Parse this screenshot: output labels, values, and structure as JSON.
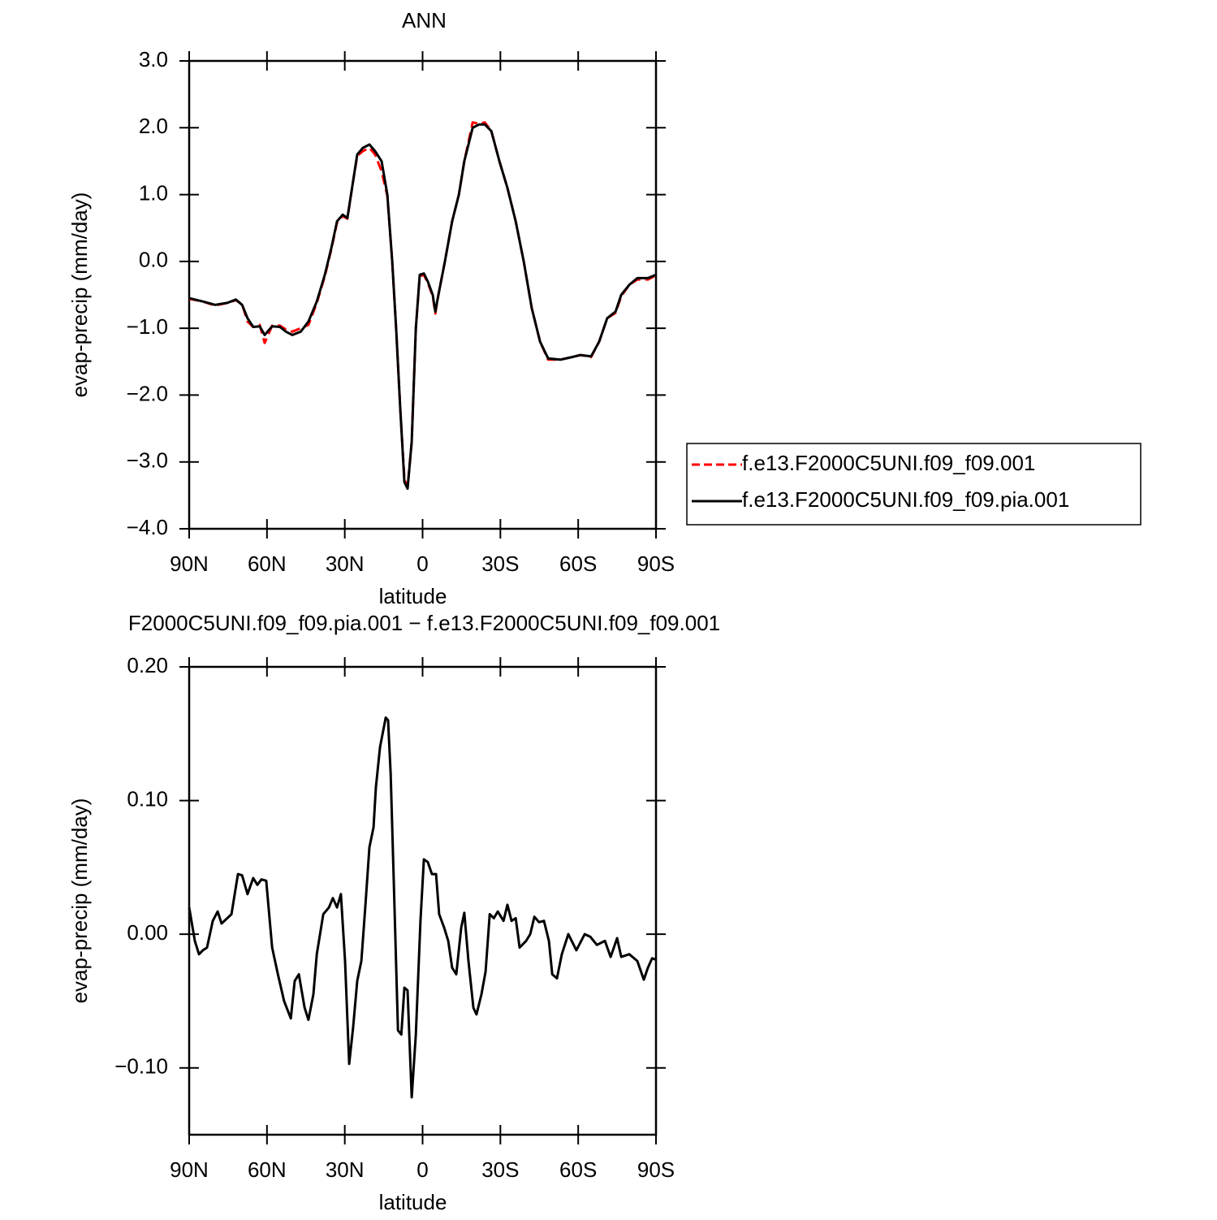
{
  "chart_data": [
    {
      "type": "line",
      "title": "ANN",
      "x_label": "latitude",
      "y_label": "evap-precip (mm/day)",
      "xlim": [
        90,
        -90
      ],
      "xticks": [
        {
          "value": 90,
          "label": "90N"
        },
        {
          "value": 60,
          "label": "60N"
        },
        {
          "value": 30,
          "label": "30N"
        },
        0,
        {
          "value": -30,
          "label": "30S"
        },
        {
          "value": -60,
          "label": "60S"
        },
        {
          "value": -90,
          "label": "90S"
        }
      ],
      "ylim": [
        -4.0,
        3.0
      ],
      "yticks": [
        {
          "value": 3.0,
          "label": "3.0"
        },
        {
          "value": 2.0,
          "label": "2.0"
        },
        {
          "value": 1.0,
          "label": "1.0"
        },
        {
          "value": 0.0,
          "label": "0.0"
        },
        {
          "value": -1.0,
          "label": "−1.0"
        },
        {
          "value": -2.0,
          "label": "−2.0"
        },
        {
          "value": -3.0,
          "label": "−3.0"
        },
        {
          "value": -4.0,
          "label": "−4.0"
        }
      ],
      "legend": "right",
      "x": [
        90,
        84.7,
        80,
        75.3,
        72,
        69.6,
        67.5,
        65.3,
        62.8,
        60.9,
        58,
        55,
        52.7,
        50.2,
        47,
        44,
        40.8,
        37.7,
        35.2,
        33,
        30.8,
        29,
        26.8,
        25.2,
        23,
        20.5,
        18.3,
        15.8,
        13.6,
        11.7,
        10.2,
        8.6,
        7,
        5.8,
        4.2,
        2.6,
        1.1,
        -0.5,
        -2,
        -3.9,
        -4.9,
        -6.1,
        -8.6,
        -11.4,
        -14,
        -16.1,
        -19.3,
        -21.8,
        -24,
        -26.5,
        -29.6,
        -32.7,
        -35.9,
        -39,
        -42.1,
        -45.3,
        -48.4,
        -53.1,
        -57.8,
        -60.9,
        -65,
        -68.1,
        -71.2,
        -74.4,
        -76.6,
        -79.7,
        -82.8,
        -86.9,
        -90
      ],
      "series": [
        {
          "name": "f.e13.F2000C5UNI.f09_f09.001",
          "color": "#ff0000",
          "linestyle": "dashed",
          "values": [
            -0.56,
            -0.6,
            -0.66,
            -0.62,
            -0.58,
            -0.64,
            -0.9,
            -0.98,
            -0.95,
            -1.22,
            -0.96,
            -0.96,
            -1.02,
            -1.05,
            -1.0,
            -0.95,
            -0.62,
            -0.22,
            0.18,
            0.58,
            0.68,
            0.64,
            1.2,
            1.58,
            1.65,
            1.7,
            1.6,
            1.35,
            0.98,
            0.0,
            -1.0,
            -2.2,
            -3.25,
            -3.38,
            -2.7,
            -1.0,
            -0.22,
            -0.2,
            -0.32,
            -0.52,
            -0.78,
            -0.5,
            0.0,
            0.6,
            1.0,
            1.5,
            2.08,
            2.06,
            2.08,
            1.95,
            1.5,
            1.1,
            0.6,
            0.0,
            -0.7,
            -1.2,
            -1.47,
            -1.47,
            -1.43,
            -1.4,
            -1.43,
            -1.2,
            -0.85,
            -0.77,
            -0.52,
            -0.35,
            -0.27,
            -0.27,
            -0.21
          ]
        },
        {
          "name": "f.e13.F2000C5UNI.f09_f09.pia.001",
          "color": "#000000",
          "linestyle": "solid",
          "values": [
            -0.55,
            -0.6,
            -0.65,
            -0.62,
            -0.57,
            -0.65,
            -0.85,
            -0.98,
            -0.97,
            -1.1,
            -0.97,
            -0.98,
            -1.05,
            -1.1,
            -1.05,
            -0.9,
            -0.6,
            -0.2,
            0.2,
            0.6,
            0.7,
            0.65,
            1.2,
            1.6,
            1.7,
            1.75,
            1.65,
            1.5,
            1.0,
            0.0,
            -1.0,
            -2.2,
            -3.3,
            -3.4,
            -2.7,
            -1.0,
            -0.2,
            -0.18,
            -0.3,
            -0.5,
            -0.75,
            -0.5,
            0.0,
            0.6,
            1.0,
            1.5,
            2.0,
            2.05,
            2.05,
            1.95,
            1.5,
            1.1,
            0.6,
            0.0,
            -0.7,
            -1.2,
            -1.45,
            -1.47,
            -1.43,
            -1.4,
            -1.42,
            -1.2,
            -0.85,
            -0.75,
            -0.5,
            -0.35,
            -0.25,
            -0.25,
            -0.2
          ]
        }
      ]
    },
    {
      "type": "line",
      "title": "F2000C5UNI.f09_f09.pia.001  −  f.e13.F2000C5UNI.f09_f09.001",
      "x_label": "latitude",
      "y_label": "evap-precip (mm/day)",
      "xlim": [
        90,
        -90
      ],
      "xticks": [
        {
          "value": 90,
          "label": "90N"
        },
        {
          "value": 60,
          "label": "60N"
        },
        {
          "value": 30,
          "label": "30N"
        },
        0,
        {
          "value": -30,
          "label": "30S"
        },
        {
          "value": -60,
          "label": "60S"
        },
        {
          "value": -90,
          "label": "90S"
        }
      ],
      "ylim": [
        -0.15,
        0.2
      ],
      "yticks": [
        {
          "value": 0.2,
          "label": "0.20"
        },
        {
          "value": 0.1,
          "label": "0.10"
        },
        {
          "value": 0.0,
          "label": "0.00"
        },
        {
          "value": -0.1,
          "label": "−0.10"
        }
      ],
      "color": "#000000",
      "x": [
        90,
        87.8,
        86.2,
        84.7,
        83.1,
        80.9,
        79,
        77.5,
        75.3,
        73.7,
        71.2,
        69.6,
        67.5,
        65.3,
        63.7,
        62.1,
        60.3,
        58,
        55.8,
        53.4,
        50.8,
        49.3,
        47.7,
        45.5,
        44,
        42.1,
        40.8,
        38.3,
        36.1,
        34.6,
        33,
        31.5,
        29.9,
        28.3,
        26.8,
        25.2,
        23.6,
        22.1,
        20.5,
        18.9,
        18,
        16.4,
        14.2,
        13.3,
        12.3,
        11.1,
        9.5,
        8.2,
        7,
        5.8,
        4.2,
        2.6,
        0.8,
        -0.5,
        -2,
        -3.6,
        -5.2,
        -6.4,
        -8.3,
        -9.9,
        -11.4,
        -13,
        -14.9,
        -16.1,
        -17.7,
        -19.6,
        -20.8,
        -22.7,
        -24.3,
        -25.9,
        -27.5,
        -29,
        -31.2,
        -32.7,
        -34.3,
        -35.9,
        -37.4,
        -39.9,
        -41.5,
        -43.1,
        -44.9,
        -46.8,
        -48.7,
        -50,
        -51.8,
        -53.7,
        -56.2,
        -59.3,
        -62.5,
        -64.7,
        -67.2,
        -70.3,
        -72.5,
        -75,
        -76.6,
        -79.7,
        -82.8,
        -85.3,
        -86.9,
        -88.5,
        -90
      ],
      "values": [
        0.02,
        -0.005,
        -0.015,
        -0.012,
        -0.01,
        0.01,
        0.017,
        0.008,
        0.012,
        0.015,
        0.045,
        0.044,
        0.03,
        0.042,
        0.037,
        0.041,
        0.04,
        -0.01,
        -0.03,
        -0.05,
        -0.063,
        -0.035,
        -0.03,
        -0.055,
        -0.064,
        -0.045,
        -0.015,
        0.015,
        0.02,
        0.027,
        0.02,
        0.03,
        -0.02,
        -0.097,
        -0.07,
        -0.035,
        -0.02,
        0.02,
        0.065,
        0.08,
        0.11,
        0.14,
        0.162,
        0.16,
        0.12,
        0.04,
        -0.072,
        -0.075,
        -0.04,
        -0.042,
        -0.122,
        -0.075,
        0.01,
        0.056,
        0.054,
        0.045,
        0.045,
        0.015,
        0.005,
        -0.005,
        -0.025,
        -0.03,
        0.005,
        0.016,
        -0.02,
        -0.055,
        -0.06,
        -0.045,
        -0.028,
        0.015,
        0.012,
        0.017,
        0.01,
        0.022,
        0.01,
        0.012,
        -0.01,
        -0.005,
        0.0,
        0.013,
        0.009,
        0.01,
        -0.005,
        -0.03,
        -0.033,
        -0.015,
        0.0,
        -0.012,
        0.0,
        -0.002,
        -0.008,
        -0.005,
        -0.017,
        -0.003,
        -0.017,
        -0.015,
        -0.02,
        -0.034,
        -0.025,
        -0.018,
        -0.019
      ]
    }
  ]
}
